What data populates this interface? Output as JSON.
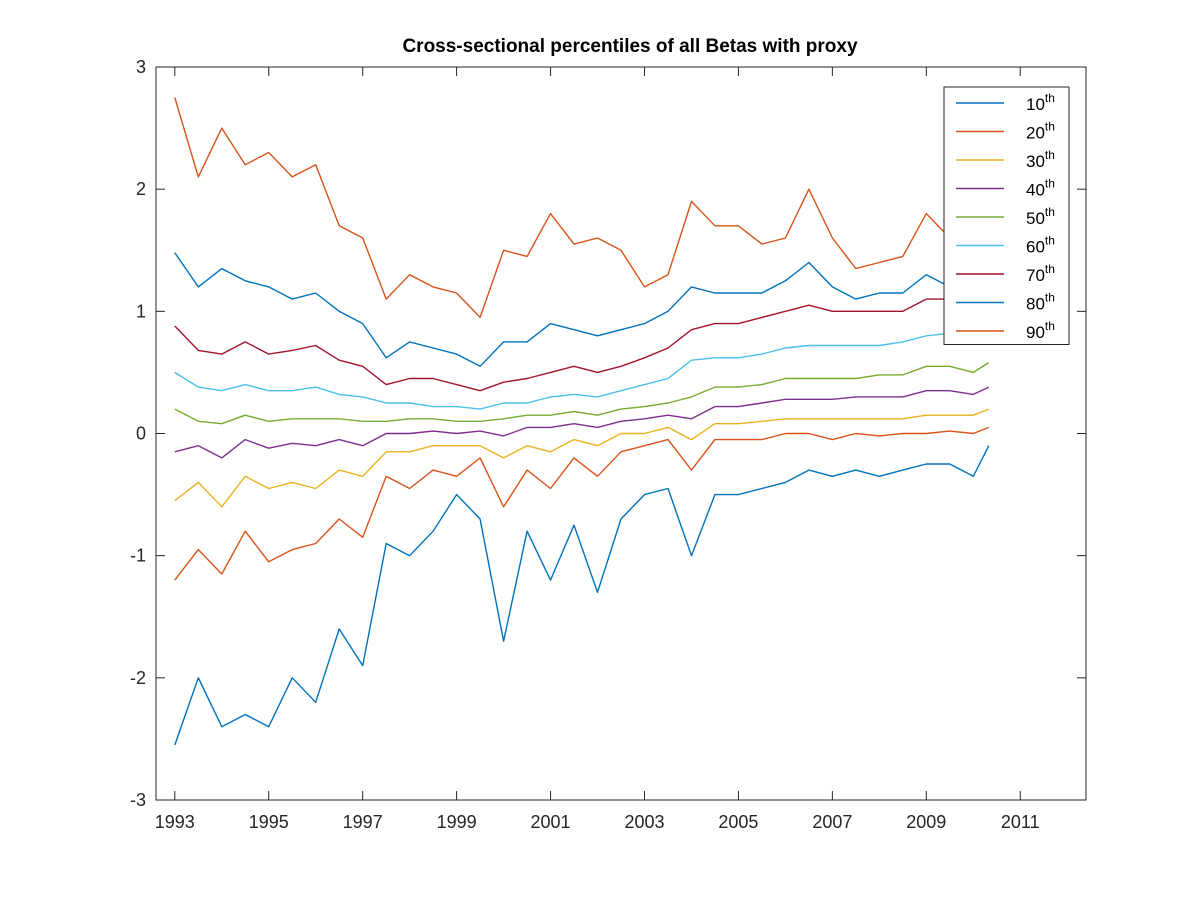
{
  "chart_data": {
    "type": "line",
    "title": "Cross-sectional percentiles of all Betas with proxy",
    "xlabel": "",
    "ylabel": "",
    "xlim": [
      1992.6,
      2012.4
    ],
    "ylim": [
      -3,
      3
    ],
    "xticks": [
      "1993",
      "1995",
      "1997",
      "1999",
      "2001",
      "2003",
      "2005",
      "2007",
      "2009",
      "2011"
    ],
    "yticks": [
      "3",
      "2",
      "1",
      "0",
      "-1",
      "-2",
      "-3"
    ],
    "grid": false,
    "legend_position": "top-right",
    "x": [
      1993.0,
      1993.5,
      1994.0,
      1994.5,
      1995.0,
      1995.5,
      1996.0,
      1996.5,
      1997.0,
      1997.5,
      1998.0,
      1998.5,
      1999.0,
      1999.5,
      2000.0,
      2000.5,
      2001.0,
      2001.5,
      2002.0,
      2002.5,
      2003.0,
      2003.5,
      2004.0,
      2004.5,
      2005.0,
      2005.5,
      2006.0,
      2006.5,
      2007.0,
      2007.5,
      2008.0,
      2008.5,
      2009.0,
      2009.5,
      2010.0,
      2010.33
    ],
    "series": [
      {
        "name": "10",
        "name_sup": "th",
        "color": "#0072BD",
        "values": [
          -2.55,
          -2.0,
          -2.4,
          -2.3,
          -2.4,
          -2.0,
          -2.2,
          -1.6,
          -1.9,
          -0.9,
          -1.0,
          -0.8,
          -0.5,
          -0.7,
          -1.7,
          -0.8,
          -1.2,
          -0.75,
          -1.3,
          -0.7,
          -0.5,
          -0.45,
          -1.0,
          -0.5,
          -0.5,
          -0.45,
          -0.4,
          -0.3,
          -0.35,
          -0.3,
          -0.35,
          -0.3,
          -0.25,
          -0.25,
          -0.35,
          -0.1
        ]
      },
      {
        "name": "20",
        "name_sup": "th",
        "color": "#D95319",
        "values": [
          -1.2,
          -0.95,
          -1.15,
          -0.8,
          -1.05,
          -0.95,
          -0.9,
          -0.7,
          -0.85,
          -0.35,
          -0.45,
          -0.3,
          -0.35,
          -0.2,
          -0.6,
          -0.3,
          -0.45,
          -0.2,
          -0.35,
          -0.15,
          -0.1,
          -0.05,
          -0.3,
          -0.05,
          -0.05,
          -0.05,
          0.0,
          0.0,
          -0.05,
          0.0,
          -0.02,
          0.0,
          0.0,
          0.02,
          0.0,
          0.05
        ]
      },
      {
        "name": "30",
        "name_sup": "th",
        "color": "#EDB120",
        "values": [
          -0.55,
          -0.4,
          -0.6,
          -0.35,
          -0.45,
          -0.4,
          -0.45,
          -0.3,
          -0.35,
          -0.15,
          -0.15,
          -0.1,
          -0.1,
          -0.1,
          -0.2,
          -0.1,
          -0.15,
          -0.05,
          -0.1,
          0.0,
          0.0,
          0.05,
          -0.05,
          0.08,
          0.08,
          0.1,
          0.12,
          0.12,
          0.12,
          0.12,
          0.12,
          0.12,
          0.15,
          0.15,
          0.15,
          0.2
        ]
      },
      {
        "name": "40",
        "name_sup": "th",
        "color": "#7E2F8E",
        "values": [
          -0.15,
          -0.1,
          -0.2,
          -0.05,
          -0.12,
          -0.08,
          -0.1,
          -0.05,
          -0.1,
          0.0,
          0.0,
          0.02,
          0.0,
          0.02,
          -0.02,
          0.05,
          0.05,
          0.08,
          0.05,
          0.1,
          0.12,
          0.15,
          0.12,
          0.22,
          0.22,
          0.25,
          0.28,
          0.28,
          0.28,
          0.3,
          0.3,
          0.3,
          0.35,
          0.35,
          0.32,
          0.38
        ]
      },
      {
        "name": "50",
        "name_sup": "th",
        "color": "#77AC30",
        "values": [
          0.2,
          0.1,
          0.08,
          0.15,
          0.1,
          0.12,
          0.12,
          0.12,
          0.1,
          0.1,
          0.12,
          0.12,
          0.1,
          0.1,
          0.12,
          0.15,
          0.15,
          0.18,
          0.15,
          0.2,
          0.22,
          0.25,
          0.3,
          0.38,
          0.38,
          0.4,
          0.45,
          0.45,
          0.45,
          0.45,
          0.48,
          0.48,
          0.55,
          0.55,
          0.5,
          0.58
        ]
      },
      {
        "name": "60",
        "name_sup": "th",
        "color": "#4DBEEE",
        "values": [
          0.5,
          0.38,
          0.35,
          0.4,
          0.35,
          0.35,
          0.38,
          0.32,
          0.3,
          0.25,
          0.25,
          0.22,
          0.22,
          0.2,
          0.25,
          0.25,
          0.3,
          0.32,
          0.3,
          0.35,
          0.4,
          0.45,
          0.6,
          0.62,
          0.62,
          0.65,
          0.7,
          0.72,
          0.72,
          0.72,
          0.72,
          0.75,
          0.8,
          0.82,
          0.78,
          0.85
        ]
      },
      {
        "name": "70",
        "name_sup": "th",
        "color": "#A2142F",
        "values": [
          0.88,
          0.68,
          0.65,
          0.75,
          0.65,
          0.68,
          0.72,
          0.6,
          0.55,
          0.4,
          0.45,
          0.45,
          0.4,
          0.35,
          0.42,
          0.45,
          0.5,
          0.55,
          0.5,
          0.55,
          0.62,
          0.7,
          0.85,
          0.9,
          0.9,
          0.95,
          1.0,
          1.05,
          1.0,
          1.0,
          1.0,
          1.0,
          1.1,
          1.1,
          1.0,
          1.15
        ]
      },
      {
        "name": "80",
        "name_sup": "th",
        "color": "#0072BD",
        "values": [
          1.48,
          1.2,
          1.35,
          1.25,
          1.2,
          1.1,
          1.15,
          1.0,
          0.9,
          0.62,
          0.75,
          0.7,
          0.65,
          0.55,
          0.75,
          0.75,
          0.9,
          0.85,
          0.8,
          0.85,
          0.9,
          1.0,
          1.2,
          1.15,
          1.15,
          1.15,
          1.25,
          1.4,
          1.2,
          1.1,
          1.15,
          1.15,
          1.3,
          1.2,
          1.1,
          1.25
        ]
      },
      {
        "name": "90",
        "name_sup": "th",
        "color": "#D95319",
        "values": [
          2.75,
          2.1,
          2.5,
          2.2,
          2.3,
          2.1,
          2.2,
          1.7,
          1.6,
          1.1,
          1.3,
          1.2,
          1.15,
          0.95,
          1.5,
          1.45,
          1.8,
          1.55,
          1.6,
          1.5,
          1.2,
          1.3,
          1.9,
          1.7,
          1.7,
          1.55,
          1.6,
          2.0,
          1.6,
          1.35,
          1.4,
          1.45,
          1.8,
          1.6,
          1.5,
          1.75
        ]
      }
    ]
  }
}
